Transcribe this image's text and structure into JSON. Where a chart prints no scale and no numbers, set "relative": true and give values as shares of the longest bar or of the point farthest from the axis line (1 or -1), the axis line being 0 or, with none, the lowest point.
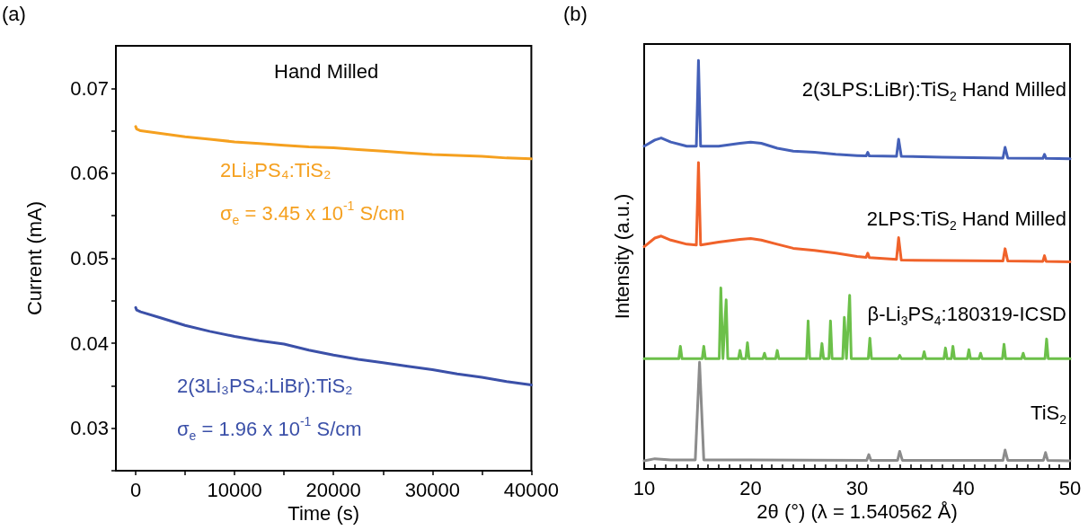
{
  "chart_data": [
    {
      "type": "line",
      "title": "(a)",
      "xlabel": "Time (s)",
      "ylabel": "Current (mA)",
      "xlim": [
        -2000,
        40000
      ],
      "ylim": [
        0.025,
        0.075
      ],
      "xticks": [
        0,
        {
          "value": 5000,
          "label": null
        },
        10000,
        {
          "value": 15000,
          "label": null
        },
        20000,
        {
          "value": 25000,
          "label": null
        },
        30000,
        {
          "value": 35000,
          "label": null
        },
        40000
      ],
      "yticks": [
        {
          "value": 0.025,
          "label": null
        },
        0.03,
        {
          "value": 0.035,
          "label": null
        },
        0.04,
        {
          "value": 0.045,
          "label": null
        },
        0.05,
        {
          "value": 0.055,
          "label": null
        },
        0.06,
        {
          "value": 0.065,
          "label": null
        },
        0.07
      ],
      "grid": false,
      "marker": "none",
      "line_style": "solid",
      "annotations": [
        "Hand Milled",
        "σ$_{e}$ = 3.45 x 10$^{-1}$ S/cm",
        "σ$_{e}$ = 1.96 x 10$^{-1}$ S/cm"
      ],
      "x": [
        0,
        100,
        500,
        2500,
        5000,
        7500,
        10000,
        12500,
        15000,
        17500,
        20000,
        22500,
        25000,
        27500,
        30000,
        32500,
        35000,
        37500,
        40000
      ],
      "series": [
        {
          "name": "2Li₃PS₄:TiS₂",
          "color": "#f5a01f",
          "values": [
            0.0655,
            0.0652,
            0.065,
            0.0647,
            0.0643,
            0.064,
            0.0637,
            0.0635,
            0.0633,
            0.0631,
            0.063,
            0.0628,
            0.0626,
            0.0624,
            0.0622,
            0.0621,
            0.062,
            0.0618,
            0.0617
          ]
        },
        {
          "name": "2(3Li₃PS₄:LiBr):TiS₂",
          "color": "#3b50a8",
          "values": [
            0.0442,
            0.0439,
            0.0437,
            0.043,
            0.0421,
            0.0414,
            0.0408,
            0.0403,
            0.0399,
            0.0392,
            0.0386,
            0.0381,
            0.0377,
            0.0373,
            0.0369,
            0.0364,
            0.036,
            0.0355,
            0.0351
          ]
        }
      ]
    },
    {
      "type": "line",
      "title": "(b)",
      "xlabel": "2θ (°) (λ = 1.540562 Å)",
      "ylabel": "Intensity (a.u.)",
      "relative": true,
      "tick_labels": "x",
      "xlim": [
        10,
        50
      ],
      "xticks": [
        10,
        {
          "value": 11,
          "label": null
        },
        {
          "value": 12,
          "label": null
        },
        {
          "value": 13,
          "label": null
        },
        {
          "value": 14,
          "label": null
        },
        {
          "value": 15,
          "label": null
        },
        {
          "value": 16,
          "label": null
        },
        {
          "value": 17,
          "label": null
        },
        {
          "value": 18,
          "label": null
        },
        {
          "value": 19,
          "label": null
        },
        20,
        {
          "value": 21,
          "label": null
        },
        {
          "value": 22,
          "label": null
        },
        {
          "value": 23,
          "label": null
        },
        {
          "value": 24,
          "label": null
        },
        {
          "value": 25,
          "label": null
        },
        {
          "value": 26,
          "label": null
        },
        {
          "value": 27,
          "label": null
        },
        {
          "value": 28,
          "label": null
        },
        {
          "value": 29,
          "label": null
        },
        30,
        {
          "value": 31,
          "label": null
        },
        {
          "value": 32,
          "label": null
        },
        {
          "value": 33,
          "label": null
        },
        {
          "value": 34,
          "label": null
        },
        {
          "value": 35,
          "label": null
        },
        {
          "value": 36,
          "label": null
        },
        {
          "value": 37,
          "label": null
        },
        {
          "value": 38,
          "label": null
        },
        {
          "value": 39,
          "label": null
        },
        40,
        {
          "value": 41,
          "label": null
        },
        {
          "value": 42,
          "label": null
        },
        {
          "value": 43,
          "label": null
        },
        {
          "value": 44,
          "label": null
        },
        {
          "value": 45,
          "label": null
        },
        {
          "value": 46,
          "label": null
        },
        {
          "value": 47,
          "label": null
        },
        {
          "value": 48,
          "label": null
        },
        {
          "value": 49,
          "label": null
        },
        50
      ],
      "grid": false,
      "marker": "none",
      "line_style": "solid",
      "series": [
        {
          "name": "2(3LPS:LiBr):TiS$_{2}$ Hand Milled",
          "color": "#4460b8",
          "x": [
            10,
            11,
            11.6,
            12.5,
            14,
            14.9,
            15.1,
            15.3,
            17,
            19,
            20,
            21,
            22.5,
            24,
            26,
            28,
            30,
            30.85,
            31,
            31.15,
            33.7,
            33.9,
            34.15,
            38,
            43.7,
            43.9,
            44.15,
            47.45,
            47.6,
            47.75,
            50
          ],
          "values": [
            0.79,
            0.805,
            0.81,
            0.8,
            0.79,
            0.79,
            1.0,
            0.79,
            0.79,
            0.797,
            0.8,
            0.797,
            0.785,
            0.778,
            0.775,
            0.77,
            0.767,
            0.766,
            0.775,
            0.766,
            0.765,
            0.807,
            0.765,
            0.763,
            0.761,
            0.787,
            0.761,
            0.76,
            0.77,
            0.76,
            0.759
          ]
        },
        {
          "name": "2LPS:TiS$_{2}$ Hand Milled",
          "color": "#f0622a",
          "x": [
            10,
            11,
            11.6,
            12.5,
            14,
            14.9,
            15.1,
            15.3,
            17,
            19,
            20,
            21,
            22.5,
            24,
            26,
            28,
            30,
            30.85,
            31,
            31.15,
            33.7,
            33.9,
            34.15,
            38,
            43.7,
            43.9,
            44.15,
            47.45,
            47.6,
            47.75,
            50
          ],
          "values": [
            0.544,
            0.565,
            0.57,
            0.56,
            0.55,
            0.548,
            0.75,
            0.548,
            0.555,
            0.562,
            0.564,
            0.56,
            0.55,
            0.54,
            0.535,
            0.528,
            0.52,
            0.518,
            0.528,
            0.517,
            0.513,
            0.566,
            0.511,
            0.51,
            0.509,
            0.539,
            0.509,
            0.508,
            0.522,
            0.508,
            0.507
          ]
        },
        {
          "name": "β-Li$_{3}$PS$_{4}$:180319-ICSD",
          "color": "#6cc04a",
          "x": [
            10,
            13.25,
            13.4,
            13.55,
            15.45,
            15.6,
            15.75,
            17.05,
            17.2,
            17.4,
            17.7,
            17.85,
            18.85,
            19,
            19.15,
            19.55,
            19.7,
            19.85,
            21.15,
            21.3,
            21.45,
            22.35,
            22.5,
            22.65,
            25.25,
            25.4,
            25.55,
            26.55,
            26.7,
            26.85,
            27.35,
            27.5,
            27.65,
            28.65,
            28.8,
            29.0,
            29.3,
            29.45,
            31.05,
            31.2,
            31.35,
            33.85,
            34.0,
            34.15,
            36.15,
            36.3,
            36.45,
            38.15,
            38.3,
            38.45,
            38.85,
            39.0,
            39.15,
            40.35,
            40.5,
            40.65,
            41.45,
            41.6,
            41.75,
            43.65,
            43.8,
            43.95,
            45.45,
            45.6,
            45.75,
            47.65,
            47.8,
            47.95,
            50
          ],
          "values": [
            0.27,
            0.27,
            0.3,
            0.27,
            0.27,
            0.3,
            0.27,
            0.27,
            0.443,
            0.27,
            0.414,
            0.27,
            0.27,
            0.29,
            0.27,
            0.27,
            0.309,
            0.27,
            0.27,
            0.283,
            0.27,
            0.27,
            0.29,
            0.27,
            0.27,
            0.362,
            0.27,
            0.27,
            0.307,
            0.27,
            0.27,
            0.362,
            0.27,
            0.27,
            0.371,
            0.27,
            0.425,
            0.27,
            0.27,
            0.32,
            0.27,
            0.27,
            0.278,
            0.27,
            0.27,
            0.287,
            0.27,
            0.27,
            0.296,
            0.27,
            0.27,
            0.3,
            0.27,
            0.27,
            0.292,
            0.27,
            0.27,
            0.283,
            0.27,
            0.27,
            0.305,
            0.27,
            0.27,
            0.283,
            0.27,
            0.27,
            0.318,
            0.27,
            0.27
          ]
        },
        {
          "name": "TiS$_{2}$",
          "color": "#8c8c8c",
          "x": [
            10,
            11,
            12.5,
            14.8,
            15.2,
            15.6,
            20,
            30.9,
            31.1,
            31.3,
            33.8,
            34.0,
            34.25,
            43.7,
            43.9,
            44.15,
            47.5,
            47.7,
            47.9,
            50
          ],
          "values": [
            0.02,
            0.025,
            0.022,
            0.022,
            0.261,
            0.022,
            0.022,
            0.021,
            0.035,
            0.021,
            0.021,
            0.043,
            0.021,
            0.021,
            0.046,
            0.021,
            0.021,
            0.04,
            0.021,
            0.02
          ]
        }
      ]
    }
  ]
}
